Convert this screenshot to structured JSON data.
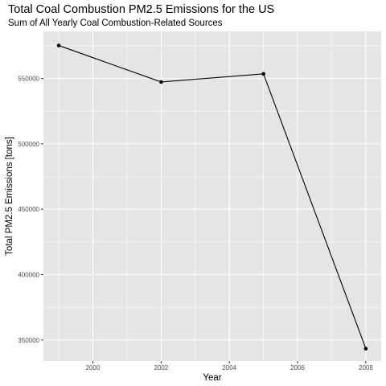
{
  "chart_data": {
    "type": "line",
    "title": "Total Coal Combustion PM2.5 Emissions for the US",
    "subtitle": "Sum of All Yearly Coal Combustion-Related Sources",
    "xlabel": "Year",
    "ylabel": "Total PM2.5 Emissions [tons]",
    "x": [
      1999,
      2002,
      2005,
      2008
    ],
    "y": [
      575200,
      547300,
      553500,
      343400
    ],
    "xlim": [
      1998.55,
      2008.45
    ],
    "ylim": [
      333900,
      586000
    ],
    "x_ticks": [
      2000,
      2002,
      2004,
      2006,
      2008
    ],
    "x_tick_labels": [
      "2000",
      "2002",
      "2004",
      "2006",
      "2008"
    ],
    "y_ticks": [
      350000,
      400000,
      450000,
      500000,
      550000
    ],
    "y_tick_labels": [
      "350000",
      "400000",
      "450000",
      "500000",
      "550000"
    ],
    "grid": true,
    "legend": "none",
    "colors": {
      "panel": "#e5e5e5",
      "grid": "#ffffff",
      "line": "#000000",
      "point": "#000000"
    }
  }
}
